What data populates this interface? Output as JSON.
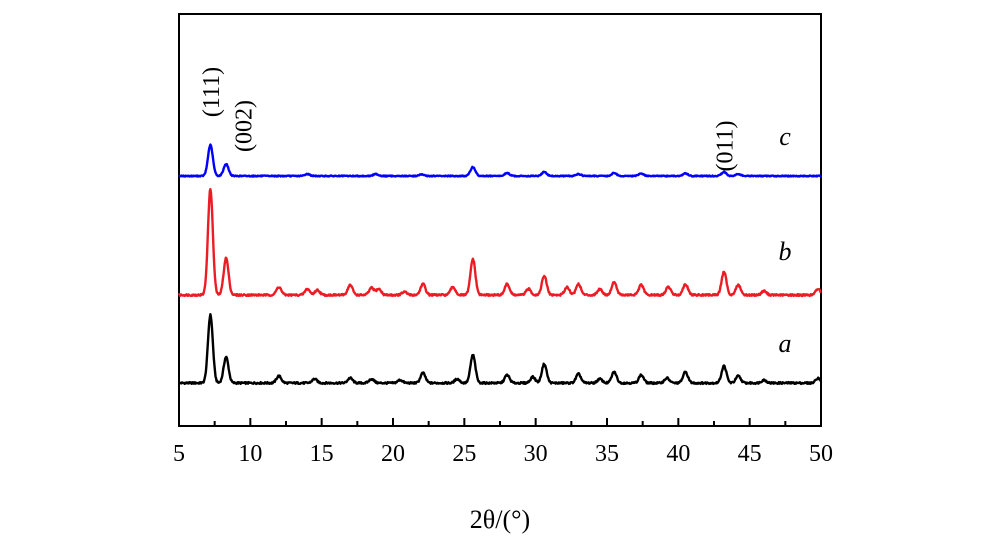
{
  "chart_data": {
    "type": "line",
    "xlabel": "2θ/(°)",
    "xlim": [
      5,
      50
    ],
    "xticks": [
      5,
      10,
      15,
      20,
      25,
      30,
      35,
      40,
      45,
      50
    ],
    "yticks": [],
    "grid": false,
    "series": [
      {
        "name": "a",
        "color": "#000000",
        "baseline": 0,
        "peaks": [
          [
            7.2,
            68
          ],
          [
            8.3,
            26
          ],
          [
            12.0,
            7
          ],
          [
            14.5,
            4
          ],
          [
            17.0,
            5
          ],
          [
            18.5,
            4
          ],
          [
            20.5,
            3
          ],
          [
            22.1,
            10
          ],
          [
            24.5,
            4
          ],
          [
            25.6,
            28
          ],
          [
            28.0,
            8
          ],
          [
            29.8,
            6
          ],
          [
            30.6,
            19
          ],
          [
            33.0,
            9
          ],
          [
            34.5,
            4
          ],
          [
            35.5,
            11
          ],
          [
            37.4,
            8
          ],
          [
            39.2,
            5
          ],
          [
            40.5,
            11
          ],
          [
            43.2,
            17
          ],
          [
            44.2,
            7
          ],
          [
            46.0,
            3
          ],
          [
            49.8,
            5
          ]
        ]
      },
      {
        "name": "b",
        "color": "#ed1c24",
        "baseline": 0,
        "peaks": [
          [
            7.2,
            106
          ],
          [
            8.3,
            37
          ],
          [
            12.0,
            8
          ],
          [
            14.0,
            6
          ],
          [
            14.7,
            5
          ],
          [
            17.0,
            10
          ],
          [
            18.5,
            7
          ],
          [
            19.0,
            6
          ],
          [
            20.8,
            3
          ],
          [
            22.1,
            11
          ],
          [
            24.2,
            8
          ],
          [
            25.6,
            36
          ],
          [
            28.0,
            11
          ],
          [
            29.5,
            6
          ],
          [
            30.6,
            19
          ],
          [
            32.2,
            8
          ],
          [
            33.0,
            11
          ],
          [
            34.5,
            6
          ],
          [
            35.5,
            13
          ],
          [
            37.4,
            10
          ],
          [
            39.3,
            8
          ],
          [
            40.5,
            11
          ],
          [
            43.2,
            23
          ],
          [
            44.2,
            10
          ],
          [
            46.0,
            4
          ],
          [
            49.8,
            6
          ]
        ]
      },
      {
        "name": "c",
        "color": "#0000ff",
        "baseline": 0,
        "peaks": [
          [
            7.2,
            31
          ],
          [
            8.3,
            12
          ],
          [
            14.0,
            2
          ],
          [
            18.8,
            2
          ],
          [
            22.0,
            1.5
          ],
          [
            25.6,
            9
          ],
          [
            28.0,
            3
          ],
          [
            30.6,
            4
          ],
          [
            33.0,
            2
          ],
          [
            35.5,
            3
          ],
          [
            37.4,
            2.5
          ],
          [
            40.5,
            2.5
          ],
          [
            43.2,
            4
          ],
          [
            44.2,
            2
          ]
        ]
      }
    ],
    "series_labels": [
      "a",
      "b",
      "c"
    ],
    "annotations": [
      {
        "text": "(111)",
        "x": 7.2
      },
      {
        "text": "(002)",
        "x": 8.3
      },
      {
        "text": "(011)",
        "x": 43.2
      }
    ]
  }
}
